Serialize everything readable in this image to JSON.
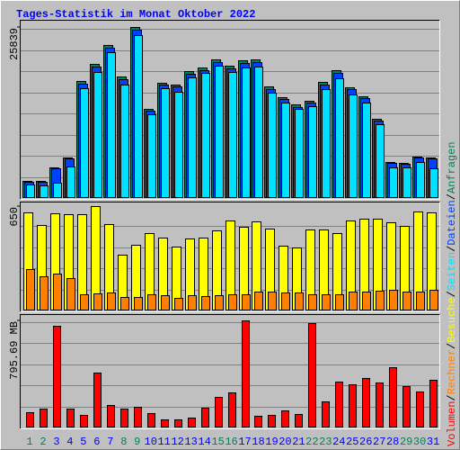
{
  "title": "Tages-Statistik im Monat Oktober 2022",
  "legend_separator": "/",
  "chart_data": [
    {
      "type": "bar",
      "ylim": [
        0,
        25839
      ],
      "yticks": [
        25839
      ],
      "series": [
        {
          "name": "Anfragen",
          "color": "#00805c",
          "values": [
            2584,
            2584,
            4624,
            6120,
            17680,
            20264,
            23120,
            18360,
            25839,
            13464,
            17408,
            17136,
            19176,
            19720,
            20944,
            19992,
            20808,
            20944,
            16864,
            15232,
            14144,
            14688,
            17544,
            19312,
            16728,
            15368,
            11968,
            5440,
            5304,
            6256,
            6120
          ]
        },
        {
          "name": "Dateien",
          "color": "#0040ff",
          "values": [
            2450,
            2420,
            4480,
            5980,
            17300,
            19900,
            22700,
            17950,
            25400,
            13150,
            17100,
            16800,
            18800,
            19350,
            20550,
            19600,
            20400,
            20550,
            16500,
            14900,
            13800,
            14350,
            17200,
            18950,
            16400,
            15050,
            11700,
            5300,
            5150,
            6100,
            5950
          ]
        },
        {
          "name": "Seiten",
          "color": "#00e0ff",
          "values": [
            1980,
            1900,
            2300,
            4800,
            16600,
            19100,
            21980,
            17100,
            24640,
            12580,
            16600,
            16100,
            18200,
            18900,
            20000,
            19000,
            19700,
            19900,
            15950,
            14400,
            13400,
            13900,
            16400,
            18100,
            15700,
            14400,
            11100,
            4600,
            4600,
            5400,
            4500
          ]
        }
      ]
    },
    {
      "type": "bar",
      "ylim": [
        0,
        650
      ],
      "yticks": [
        650
      ],
      "series": [
        {
          "name": "Besuche",
          "color": "#ffff00",
          "values": [
            611,
            532,
            605,
            599,
            599,
            650,
            538,
            347,
            409,
            482,
            454,
            398,
            448,
            454,
            498,
            560,
            521,
            554,
            510,
            403,
            392,
            504,
            504,
            482,
            560,
            571,
            571,
            549,
            526,
            616,
            611
          ]
        },
        {
          "name": "Rechner",
          "color": "#ff8000",
          "values": [
            258,
            213,
            230,
            202,
            101,
            106,
            112,
            84,
            84,
            101,
            95,
            78,
            95,
            90,
            95,
            101,
            101,
            118,
            118,
            112,
            112,
            101,
            101,
            101,
            118,
            118,
            123,
            129,
            118,
            118,
            129
          ]
        }
      ]
    },
    {
      "type": "bar",
      "ylim": [
        0,
        795.69
      ],
      "yticks": [
        {
          "value": 795.69,
          "label": "795.69 MB"
        }
      ],
      "categories": [
        "1",
        "2",
        "3",
        "4",
        "5",
        "6",
        "7",
        "8",
        "9",
        "10",
        "11",
        "12",
        "13",
        "14",
        "15",
        "16",
        "17",
        "18",
        "19",
        "20",
        "21",
        "22",
        "23",
        "24",
        "25",
        "26",
        "27",
        "28",
        "29",
        "30",
        "31"
      ],
      "category_colors": [
        "#00805c",
        "#00805c",
        "#0000ff",
        "#0000ff",
        "#0000ff",
        "#0000ff",
        "#0000ff",
        "#00805c",
        "#00805c",
        "#0000ff",
        "#0000ff",
        "#0000ff",
        "#0000ff",
        "#0000ff",
        "#00805c",
        "#00805c",
        "#0000ff",
        "#0000ff",
        "#0000ff",
        "#0000ff",
        "#0000ff",
        "#00805c",
        "#00805c",
        "#0000ff",
        "#0000ff",
        "#0000ff",
        "#0000ff",
        "#0000ff",
        "#00805c",
        "#00805c",
        "#0000ff"
      ],
      "series": [
        {
          "name": "Volumen",
          "color": "#ff0000",
          "values": [
            113.6,
            140.4,
            755.5,
            140.4,
            93.6,
            407.8,
            167.1,
            140.4,
            153.8,
            107,
            60.2,
            60.2,
            73.5,
            147.1,
            227.3,
            260.7,
            795.69,
            86.9,
            93.6,
            127,
            100.3,
            775.6,
            194,
            341,
            321,
            367.7,
            334.3,
            448,
            307.5,
            267.4,
            354.4
          ]
        }
      ]
    }
  ]
}
